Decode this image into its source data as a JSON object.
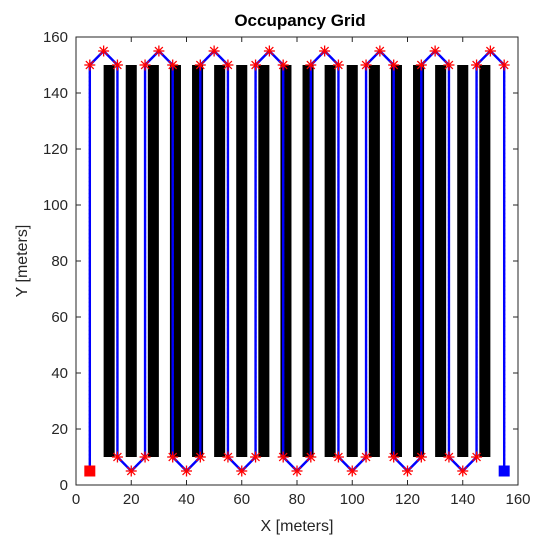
{
  "chart_data": {
    "type": "occupancy-grid",
    "title": "Occupancy Grid",
    "xlabel": "X [meters]",
    "ylabel": "Y [meters]",
    "xlim": [
      0,
      160
    ],
    "ylim": [
      0,
      160
    ],
    "xticks": [
      "0",
      "20",
      "40",
      "60",
      "80",
      "100",
      "120",
      "140",
      "160"
    ],
    "yticks": [
      "0",
      "20",
      "40",
      "60",
      "80",
      "100",
      "120",
      "140",
      "160"
    ],
    "grid": false,
    "obstacles": [
      {
        "x0": 10,
        "x1": 14,
        "y0": 10,
        "y1": 150
      },
      {
        "x0": 18,
        "x1": 22,
        "y0": 10,
        "y1": 150
      },
      {
        "x0": 26,
        "x1": 30,
        "y0": 10,
        "y1": 150
      },
      {
        "x0": 34,
        "x1": 38,
        "y0": 10,
        "y1": 150
      },
      {
        "x0": 42,
        "x1": 46,
        "y0": 10,
        "y1": 150
      },
      {
        "x0": 50,
        "x1": 54,
        "y0": 10,
        "y1": 150
      },
      {
        "x0": 58,
        "x1": 62,
        "y0": 10,
        "y1": 150
      },
      {
        "x0": 66,
        "x1": 70,
        "y0": 10,
        "y1": 150
      },
      {
        "x0": 74,
        "x1": 78,
        "y0": 10,
        "y1": 150
      },
      {
        "x0": 82,
        "x1": 86,
        "y0": 10,
        "y1": 150
      },
      {
        "x0": 90,
        "x1": 94,
        "y0": 10,
        "y1": 150
      },
      {
        "x0": 98,
        "x1": 102,
        "y0": 10,
        "y1": 150
      },
      {
        "x0": 106,
        "x1": 110,
        "y0": 10,
        "y1": 150
      },
      {
        "x0": 114,
        "x1": 118,
        "y0": 10,
        "y1": 150
      },
      {
        "x0": 122,
        "x1": 126,
        "y0": 10,
        "y1": 150
      },
      {
        "x0": 130,
        "x1": 134,
        "y0": 10,
        "y1": 150
      },
      {
        "x0": 138,
        "x1": 142,
        "y0": 10,
        "y1": 150
      },
      {
        "x0": 146,
        "x1": 150,
        "y0": 10,
        "y1": 150
      }
    ],
    "path": [
      [
        5,
        5
      ],
      [
        5,
        150
      ],
      [
        10,
        155
      ],
      [
        15,
        150
      ],
      [
        15,
        10
      ],
      [
        20,
        5
      ],
      [
        25,
        10
      ],
      [
        25,
        150
      ],
      [
        30,
        155
      ],
      [
        35,
        150
      ],
      [
        35,
        10
      ],
      [
        40,
        5
      ],
      [
        45,
        10
      ],
      [
        45,
        150
      ],
      [
        50,
        155
      ],
      [
        55,
        150
      ],
      [
        55,
        10
      ],
      [
        60,
        5
      ],
      [
        65,
        10
      ],
      [
        65,
        150
      ],
      [
        70,
        155
      ],
      [
        75,
        150
      ],
      [
        75,
        10
      ],
      [
        80,
        5
      ],
      [
        85,
        10
      ],
      [
        85,
        150
      ],
      [
        90,
        155
      ],
      [
        95,
        150
      ],
      [
        95,
        10
      ],
      [
        100,
        5
      ],
      [
        105,
        10
      ],
      [
        105,
        150
      ],
      [
        110,
        155
      ],
      [
        115,
        150
      ],
      [
        115,
        10
      ],
      [
        120,
        5
      ],
      [
        125,
        10
      ],
      [
        125,
        150
      ],
      [
        130,
        155
      ],
      [
        135,
        150
      ],
      [
        135,
        10
      ],
      [
        140,
        5
      ],
      [
        145,
        10
      ],
      [
        145,
        150
      ],
      [
        150,
        155
      ],
      [
        155,
        150
      ],
      [
        155,
        5
      ]
    ],
    "start": [
      5,
      5
    ],
    "goal": [
      155,
      5
    ],
    "colors": {
      "obstacle": "#000000",
      "path": "#0000ff",
      "waypoint": "#ff0000",
      "start": "#ff0000",
      "goal": "#0000ff"
    }
  }
}
